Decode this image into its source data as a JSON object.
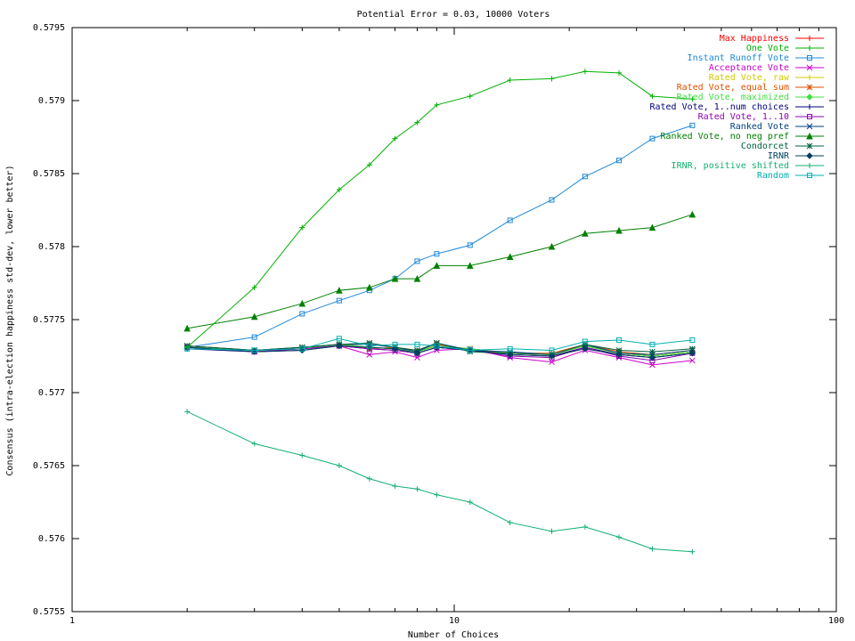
{
  "chart_data": {
    "type": "line",
    "title": "Potential Error = 0.03, 10000 Voters",
    "xlabel": "Number of Choices",
    "ylabel": "Consensus (intra-election happiness std-dev, lower better)",
    "x_scale": "log",
    "xlim": [
      1,
      100
    ],
    "ylim": [
      0.5755,
      0.5795
    ],
    "x_ticks": [
      1,
      10,
      100
    ],
    "y_ticks": [
      0.5755,
      0.576,
      0.5765,
      0.577,
      0.5775,
      0.578,
      0.5785,
      0.579,
      0.5795
    ],
    "x_tick_labels": [
      "1",
      "10",
      "100"
    ],
    "y_tick_labels": [
      "0.5755",
      "0.576",
      "0.5765",
      "0.577",
      "0.5775",
      "0.578",
      "0.5785",
      "0.579",
      "0.5795"
    ],
    "legend_position": "top-right",
    "grid": false,
    "x": [
      2,
      3,
      4,
      5,
      6,
      7,
      8,
      9,
      11,
      14,
      18,
      22,
      27,
      33,
      42
    ],
    "series": [
      {
        "name": "Max Happiness",
        "color": "#ff0000",
        "marker": "plus",
        "values": [
          0.57731,
          0.57729,
          0.5773,
          0.57733,
          0.57731,
          0.5773,
          0.57728,
          0.57732,
          0.5773,
          0.57727,
          0.57726,
          0.57732,
          0.57727,
          0.57725,
          0.57728
        ]
      },
      {
        "name": "One Vote",
        "color": "#00b000",
        "marker": "plus",
        "values": [
          0.57731,
          0.57729,
          0.5773,
          0.57733,
          0.57731,
          0.5773,
          0.57728,
          0.57732,
          0.5773,
          0.57727,
          0.57726,
          0.57732,
          0.57727,
          0.57725,
          0.57728
        ]
      },
      {
        "name": "Instant Runoff Vote",
        "color": "#1e88d8",
        "marker": "square",
        "values": [
          0.57731,
          0.57738,
          0.57754,
          0.57763,
          0.5777,
          0.57778,
          0.5779,
          0.57795,
          0.57801,
          0.57818,
          0.57832,
          0.57848,
          0.57859,
          0.57874,
          0.57883
        ]
      },
      {
        "name": "Acceptance Vote",
        "color": "#cc00cc",
        "marker": "x",
        "values": [
          0.57731,
          0.57728,
          0.5773,
          0.57732,
          0.57726,
          0.57728,
          0.57724,
          0.57729,
          0.5773,
          0.57724,
          0.57721,
          0.57729,
          0.57724,
          0.57719,
          0.57722
        ]
      },
      {
        "name": "Rated Vote, raw",
        "color": "#cccc00",
        "marker": "plus",
        "values": [
          0.57731,
          0.57729,
          0.5773,
          0.57733,
          0.57731,
          0.5773,
          0.57728,
          0.57732,
          0.5773,
          0.57727,
          0.57726,
          0.57732,
          0.57727,
          0.57725,
          0.57728
        ]
      },
      {
        "name": "Rated Vote, equal sum",
        "color": "#e05000",
        "marker": "star",
        "values": [
          0.57732,
          0.57729,
          0.57731,
          0.57733,
          0.5773,
          0.57731,
          0.57729,
          0.57733,
          0.57729,
          0.57727,
          0.57727,
          0.57733,
          0.57728,
          0.57726,
          0.57729
        ]
      },
      {
        "name": "Rated Vote, maximized",
        "color": "#40e040",
        "marker": "diamond",
        "values": [
          0.57731,
          0.57729,
          0.5773,
          0.57733,
          0.57731,
          0.5773,
          0.57728,
          0.57732,
          0.5773,
          0.57727,
          0.57726,
          0.57732,
          0.57727,
          0.57725,
          0.57728
        ]
      },
      {
        "name": "Rated Vote, 1..num choices",
        "color": "#000080",
        "marker": "plus",
        "values": [
          0.5773,
          0.57728,
          0.57729,
          0.57732,
          0.5773,
          0.57729,
          0.57727,
          0.57731,
          0.57729,
          0.57726,
          0.57725,
          0.57731,
          0.57726,
          0.57724,
          0.57727
        ]
      },
      {
        "name": "Rated Vote, 1..10",
        "color": "#9000b0",
        "marker": "square",
        "values": [
          0.57731,
          0.57728,
          0.5773,
          0.57732,
          0.5773,
          0.57729,
          0.57727,
          0.57731,
          0.57729,
          0.57725,
          0.57724,
          0.57731,
          0.57725,
          0.57722,
          0.57727
        ]
      },
      {
        "name": "Ranked Vote",
        "color": "#004080",
        "marker": "x",
        "values": [
          0.57732,
          0.57729,
          0.57731,
          0.57733,
          0.57733,
          0.57731,
          0.57728,
          0.57734,
          0.57729,
          0.57728,
          0.57726,
          0.57733,
          0.57727,
          0.57726,
          0.57729
        ]
      },
      {
        "name": "Ranked Vote, no neg pref",
        "color": "#008000",
        "marker": "triangle",
        "values": [
          0.57744,
          0.57752,
          0.57761,
          0.5777,
          0.57772,
          0.57778,
          0.57778,
          0.57787,
          0.57787,
          0.57793,
          0.578,
          0.57809,
          0.57811,
          0.57813,
          0.57822
        ]
      },
      {
        "name": "Condorcet",
        "color": "#006040",
        "marker": "star",
        "values": [
          0.57732,
          0.57729,
          0.57731,
          0.57733,
          0.57734,
          0.57731,
          0.57729,
          0.57734,
          0.57728,
          0.57727,
          0.57726,
          0.57733,
          0.57729,
          0.57728,
          0.5773
        ]
      },
      {
        "name": "IRNR",
        "color": "#004060",
        "marker": "diamond",
        "values": [
          0.57731,
          0.57728,
          0.57729,
          0.57732,
          0.57731,
          0.5773,
          0.57727,
          0.57731,
          0.57729,
          0.57726,
          0.57725,
          0.5773,
          0.57726,
          0.57724,
          0.57727
        ]
      },
      {
        "name": "IRNR, positive shifted",
        "color": "#10b070",
        "marker": "plus",
        "values": [
          0.57687,
          0.57665,
          0.57657,
          0.5765,
          0.57641,
          0.57636,
          0.57634,
          0.5763,
          0.57625,
          0.57611,
          0.57605,
          0.57608,
          0.57601,
          0.57593,
          0.57591
        ]
      },
      {
        "name": "Random",
        "color": "#00b0b0",
        "marker": "square",
        "values": [
          0.5773,
          0.57729,
          0.5773,
          0.57737,
          0.57732,
          0.57733,
          0.57733,
          0.57732,
          0.57729,
          0.5773,
          0.57729,
          0.57735,
          0.57736,
          0.57733,
          0.57736
        ]
      }
    ],
    "extra_series": [
      {
        "series_index": 1,
        "values": [
          0.57731,
          0.57772,
          0.57813,
          0.57839,
          0.57856,
          0.57874,
          0.57885,
          0.57897,
          0.57903,
          0.57914,
          0.57915,
          0.5792,
          0.57919,
          0.57903,
          0.57901
        ]
      }
    ]
  }
}
